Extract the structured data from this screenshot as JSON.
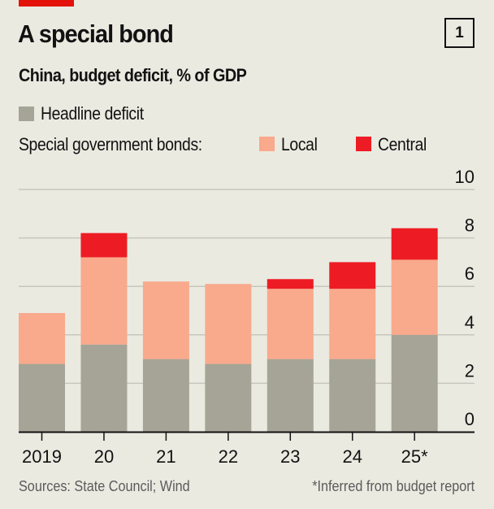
{
  "header": {
    "title": "A special bond",
    "chart_number": "1",
    "subtitle": "China, budget deficit, % of GDP"
  },
  "legend": {
    "headline_label": "Headline deficit",
    "bonds_prefix": "Special government bonds:",
    "local_label": "Local",
    "central_label": "Central"
  },
  "colors": {
    "headline": "#a5a496",
    "local": "#f9a98c",
    "central": "#ed1c24",
    "accent": "#e3120b",
    "grid": "#c7c6bc",
    "axis": "#121212",
    "background": "#ebeae1"
  },
  "footer": {
    "sources": "Sources: State Council; Wind",
    "note": "*Inferred from budget report"
  },
  "chart_data": {
    "type": "bar",
    "stacked": true,
    "title": "A special bond",
    "subtitle": "China, budget deficit, % of GDP",
    "xlabel": "",
    "ylabel": "% of GDP",
    "categories": [
      "2019",
      "20",
      "21",
      "22",
      "23",
      "24",
      "25*"
    ],
    "series": [
      {
        "name": "Headline deficit",
        "color_key": "headline",
        "values": [
          2.8,
          3.6,
          3.0,
          2.8,
          3.0,
          3.0,
          4.0
        ]
      },
      {
        "name": "Local",
        "group": "Special government bonds",
        "color_key": "local",
        "values": [
          2.1,
          3.6,
          3.2,
          3.3,
          2.9,
          2.9,
          3.1
        ]
      },
      {
        "name": "Central",
        "group": "Special government bonds",
        "color_key": "central",
        "values": [
          0,
          1.0,
          0,
          0,
          0.4,
          1.1,
          1.3
        ]
      }
    ],
    "ylim": [
      0,
      10
    ],
    "yticks": [
      0,
      2,
      4,
      6,
      8,
      10
    ],
    "ytick_labels": [
      "0",
      "2",
      "4",
      "6",
      "8",
      "10"
    ],
    "y_axis_side": "right",
    "grid": true,
    "legend_position": "top-left"
  }
}
